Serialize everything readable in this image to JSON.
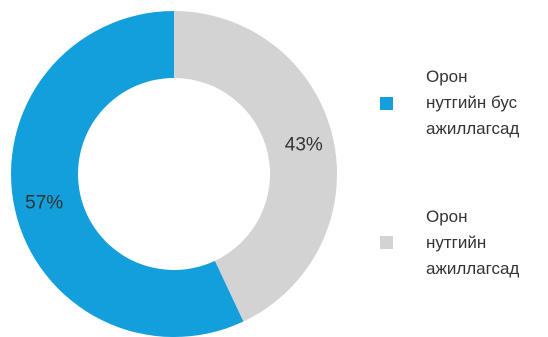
{
  "chart_data": {
    "type": "pie",
    "title": "",
    "slices": [
      {
        "label_lines": [
          "Орон",
          "нутгийн бус",
          "ажиллагсад"
        ],
        "value": 57,
        "display": "57%",
        "color": "#129fdb"
      },
      {
        "label_lines": [
          "Орон",
          "нутгийн",
          "ажиллагсад"
        ],
        "value": 43,
        "display": "43%",
        "color": "#d3d3d3"
      }
    ],
    "legend_position": "right"
  }
}
